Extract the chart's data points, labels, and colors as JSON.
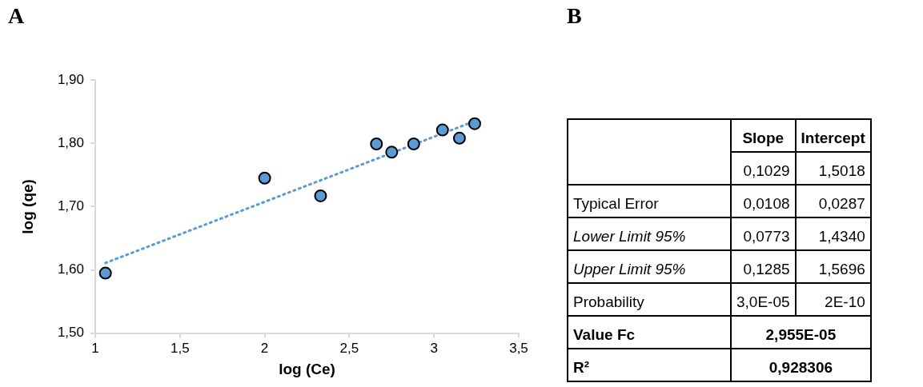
{
  "chart_data": [
    {
      "type": "scatter",
      "title": "A",
      "xlabel": "log (Ce)",
      "ylabel": "log (qe)",
      "xlim": [
        1,
        3.5
      ],
      "xticks": [
        1,
        {
          "value": 1.5,
          "label": "1,5"
        },
        2,
        {
          "value": 2.5,
          "label": "2,5"
        },
        3,
        {
          "value": 3.5,
          "label": "3,5"
        }
      ],
      "ylim": [
        1.5,
        1.9
      ],
      "yticks": [
        {
          "value": 1.5,
          "label": "1,50"
        },
        {
          "value": 1.6,
          "label": "1,60"
        },
        {
          "value": 1.7,
          "label": "1,70"
        },
        {
          "value": 1.8,
          "label": "1,80"
        },
        {
          "value": 1.9,
          "label": "1,90"
        }
      ],
      "grid": false,
      "legend": false,
      "series": [
        {
          "type": "line",
          "color": "#5b9bd5",
          "line_style": "dotted",
          "marker": "none",
          "x": [
            1.06,
            3.24
          ],
          "values": [
            1.611,
            1.835
          ]
        },
        {
          "type": "scatter",
          "color": "#5b9bd5",
          "marker": "circle",
          "x": [
            1.06,
            2.0,
            2.33,
            2.66,
            2.75,
            2.88,
            3.05,
            3.15,
            3.24
          ],
          "values": [
            1.595,
            1.745,
            1.717,
            1.799,
            1.786,
            1.799,
            1.821,
            1.808,
            1.831
          ]
        }
      ]
    },
    {
      "type": "other",
      "title": "B",
      "annotations": [
        "Slope",
        "Intercept",
        "0,1029",
        "1,5018",
        "Typical Error",
        "0,0108",
        "0,0287",
        "Lower Limit 95%",
        "0,0773",
        "1,4340",
        "Upper Limit 95%",
        "0,1285",
        "1,5696",
        "Probability",
        "3,0E-05",
        "2E-10",
        "Value Fc",
        "2,955E-05",
        "R²",
        "0,928306"
      ]
    }
  ]
}
